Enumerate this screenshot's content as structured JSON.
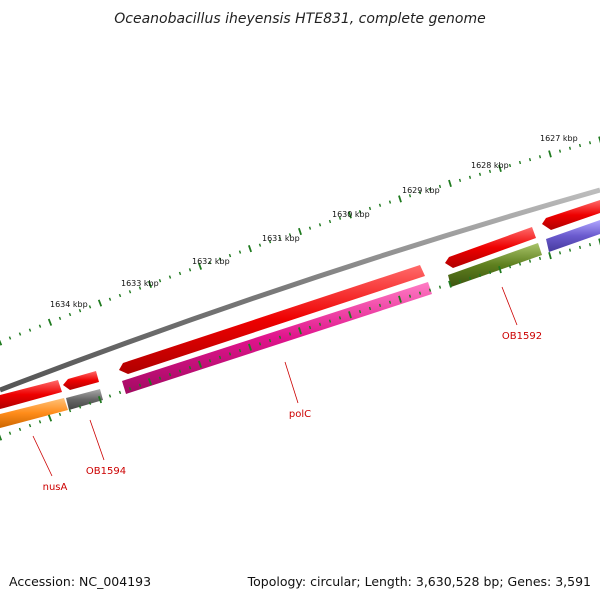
{
  "title": "Oceanobacillus iheyensis HTE831, complete genome",
  "footer": {
    "accession": "Accession: NC_004193",
    "summary": "Topology: circular; Length: 3,630,528 bp; Genes: 3,591"
  },
  "kbp_labels": [
    "1627 kbp",
    "1628 kbp",
    "1629 kbp",
    "1630 kbp",
    "1631 kbp",
    "1632 kbp",
    "1633 kbp",
    "1634 kbp"
  ],
  "gene_labels": [
    "nusA",
    "OB1594",
    "polC",
    "OB1592"
  ],
  "colors": {
    "backbone": "#7a7a7a",
    "ticks": "#1f7a1f",
    "cds": "#ee0000",
    "polC": "#e0148c",
    "nusA": "#ff8c1a",
    "OB1594": "#666666",
    "OB1592": "#5e7f1e",
    "right_gene": "#6a5acd",
    "label": "#cc0000"
  }
}
